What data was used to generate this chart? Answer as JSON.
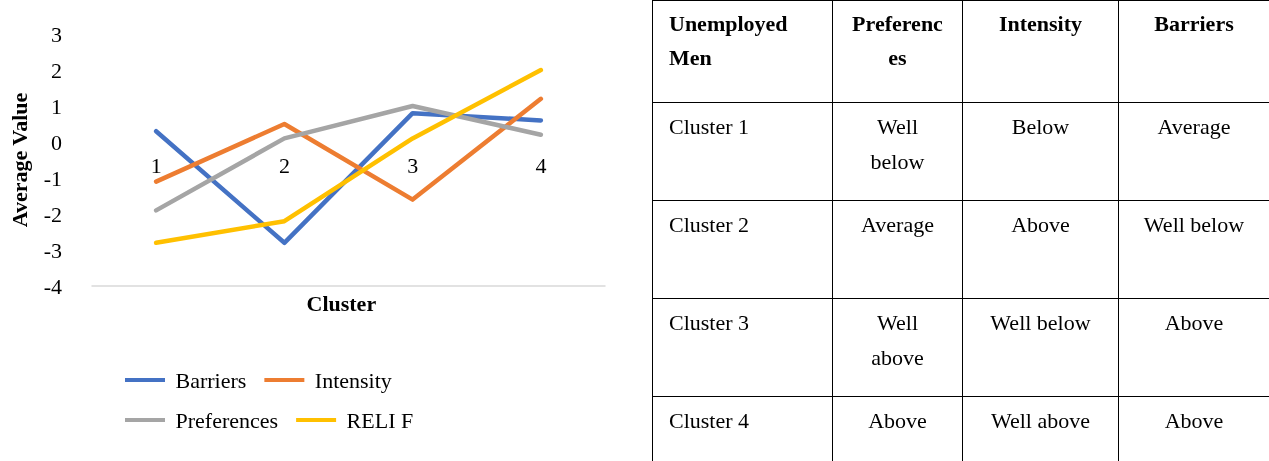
{
  "chart_data": [
    {
      "type": "line",
      "xlabel": "Cluster",
      "ylabel": "Average Value",
      "categories": [
        "1",
        "2",
        "3",
        "4"
      ],
      "series": [
        {
          "name": "Barriers",
          "color": "#4472c4",
          "values": [
            0.3,
            -2.8,
            0.8,
            0.6
          ]
        },
        {
          "name": "Intensity",
          "color": "#ed7d31",
          "values": [
            -1.1,
            0.5,
            -1.6,
            1.2
          ]
        },
        {
          "name": "Preferences",
          "color": "#a5a5a5",
          "values": [
            -1.9,
            0.1,
            1.0,
            0.2
          ]
        },
        {
          "name": "RELI F",
          "color": "#ffc000",
          "values": [
            -2.8,
            -2.2,
            0.1,
            2.0
          ]
        }
      ],
      "ylim": [
        -4,
        3
      ],
      "yticks": [
        -4,
        -3,
        -2,
        -1,
        0,
        1,
        2,
        3
      ],
      "grid": false,
      "legend": "bottom",
      "marker": "none",
      "line_style": "solid"
    },
    {
      "type": "other",
      "categories": [
        "Unemployed Men",
        "Preferences",
        "Intensity",
        "Barriers"
      ],
      "y_categories": [
        "Cluster 1",
        "Cluster 2",
        "Cluster 3",
        "Cluster 4"
      ],
      "cell_labels": [
        [
          "Well below",
          "Below",
          "Average"
        ],
        [
          "Average",
          "Above",
          "Well below"
        ],
        [
          "Well above",
          "Well below",
          "Above"
        ],
        [
          "Above",
          "Well above",
          "Above"
        ]
      ]
    }
  ]
}
